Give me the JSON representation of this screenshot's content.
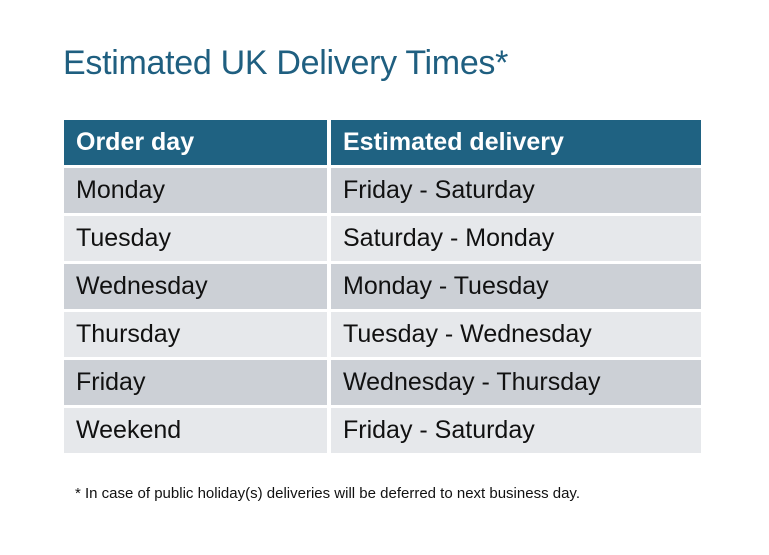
{
  "title": "Estimated UK Delivery Times*",
  "table": {
    "headers": [
      "Order day",
      "Estimated delivery"
    ],
    "rows": [
      [
        "Monday",
        "Friday - Saturday"
      ],
      [
        "Tuesday",
        "Saturday - Monday"
      ],
      [
        "Wednesday",
        "Monday - Tuesday"
      ],
      [
        "Thursday",
        "Tuesday - Wednesday"
      ],
      [
        "Friday",
        "Wednesday - Thursday"
      ],
      [
        "Weekend",
        "Friday - Saturday"
      ]
    ]
  },
  "footnote": "* In case of public holiday(s) deliveries will be deferred to next business day.",
  "colors": {
    "header": "#1f6282",
    "title": "#1f5f80",
    "row_dark": "#ccd0d6",
    "row_light": "#e6e8eb"
  }
}
